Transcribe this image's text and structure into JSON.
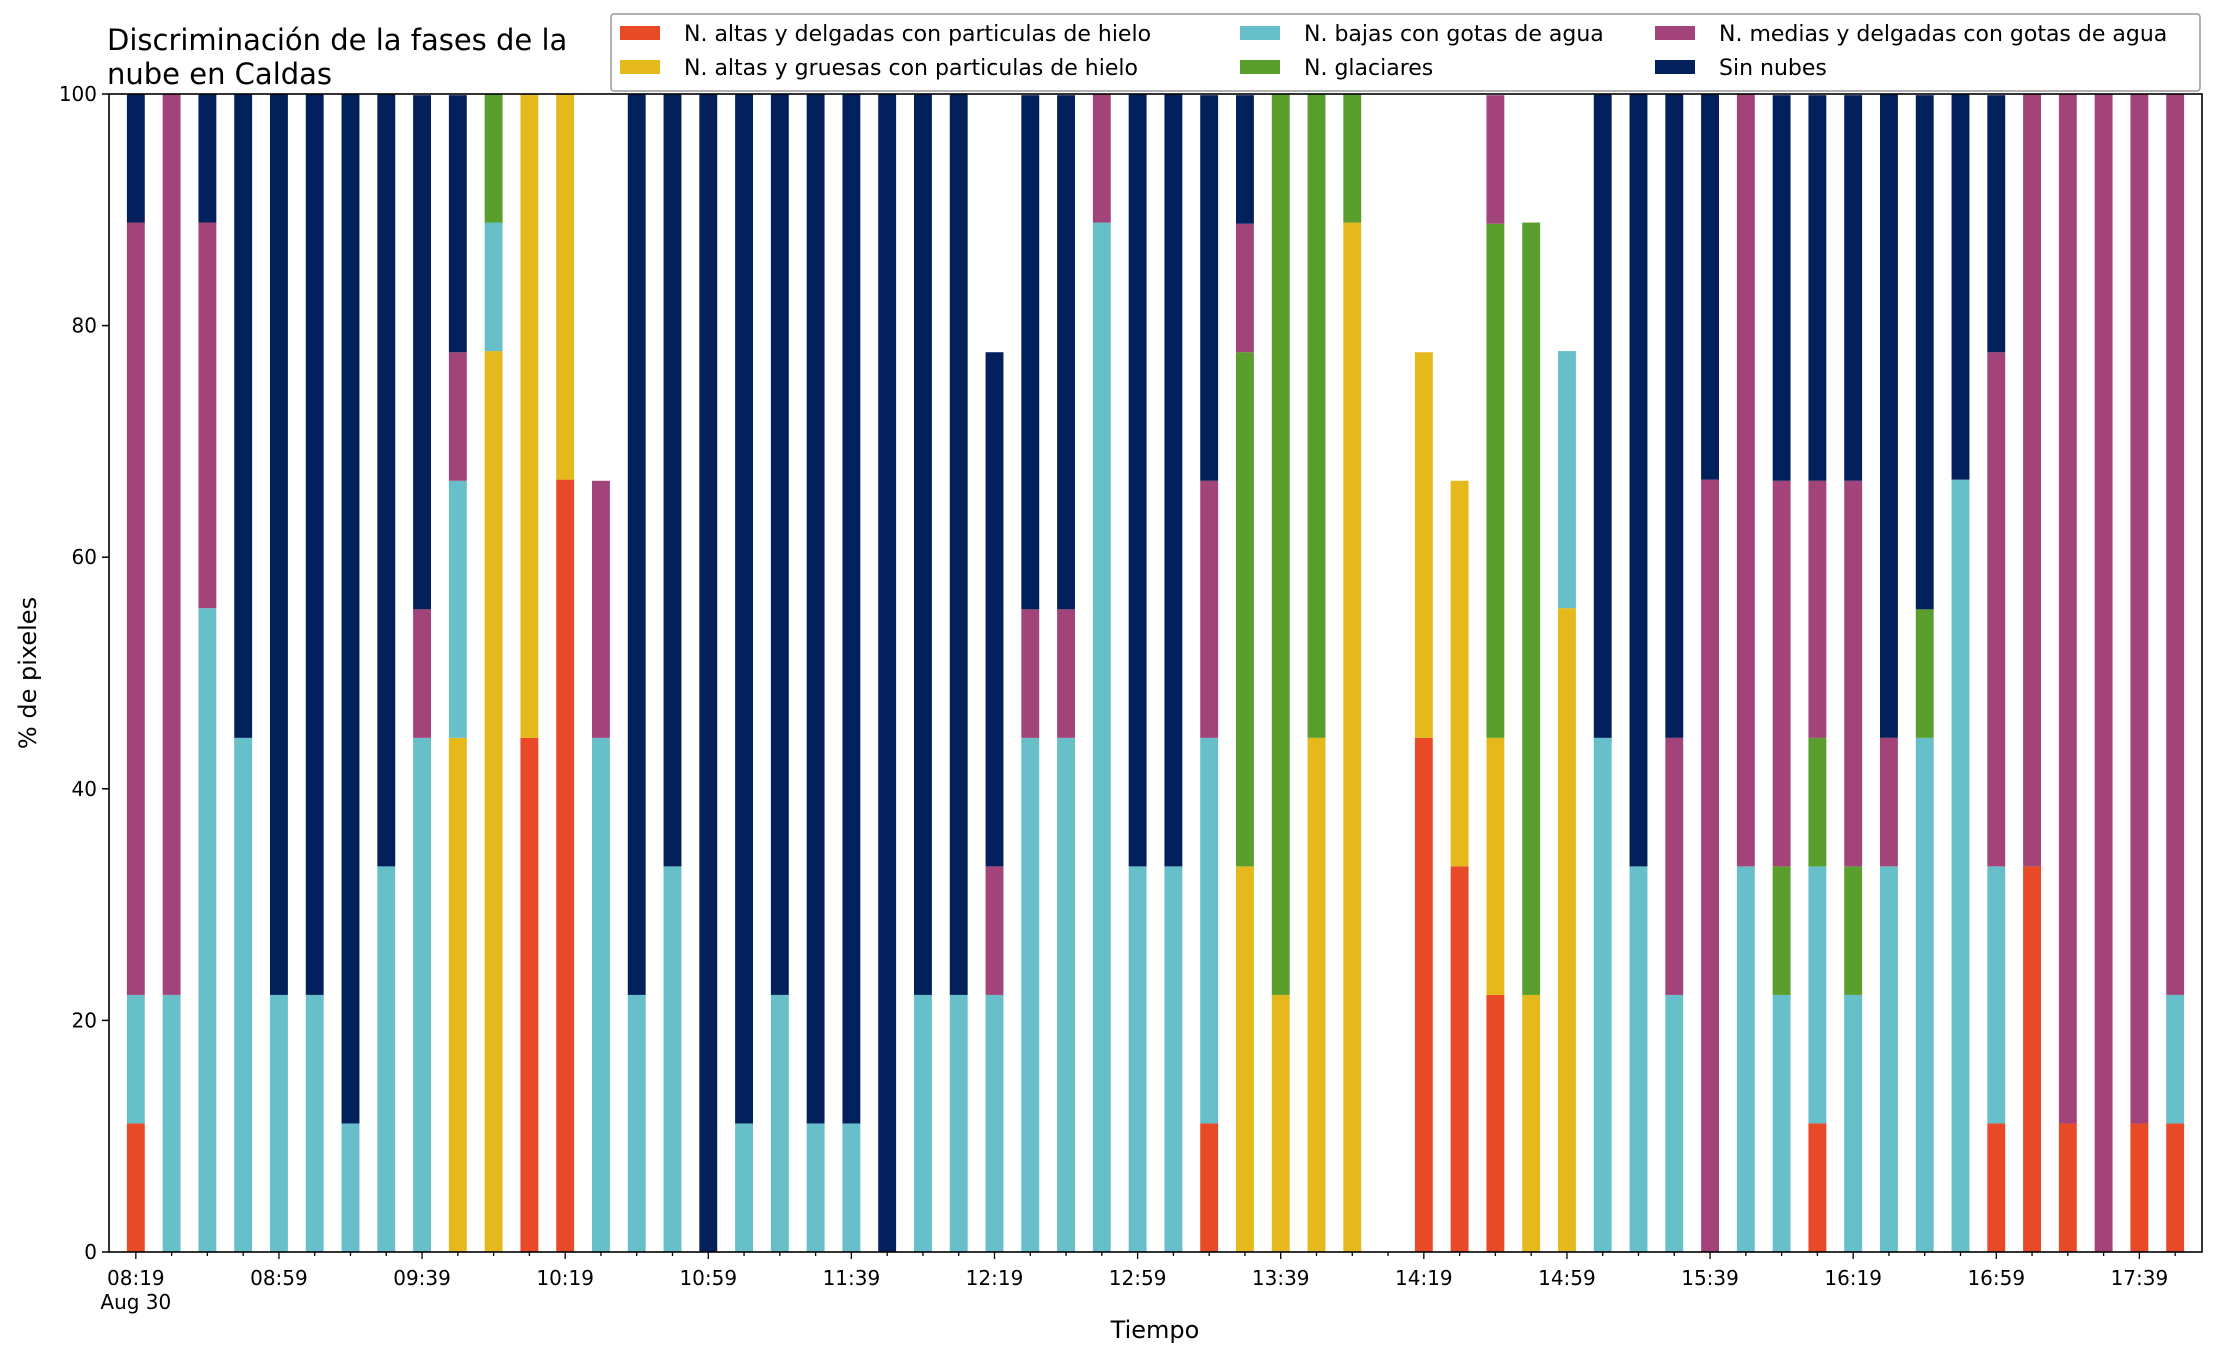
{
  "chart_data": {
    "type": "bar",
    "stacked": true,
    "title": "Discriminación de la fases de la\nnube en Caldas",
    "xlabel": "Tiempo",
    "ylabel": "% de pixeles",
    "ylim": [
      0,
      100
    ],
    "yticks": [
      0,
      20,
      40,
      60,
      80,
      100
    ],
    "grid": false,
    "legend": {
      "placement": "top-right",
      "columns": 3
    },
    "x_tick_labels": [
      {
        "index": 0,
        "label": "08:19",
        "sublabel": "Aug 30"
      },
      {
        "index": 4,
        "label": "08:59"
      },
      {
        "index": 8,
        "label": "09:39"
      },
      {
        "index": 12,
        "label": "10:19"
      },
      {
        "index": 16,
        "label": "10:59"
      },
      {
        "index": 20,
        "label": "11:39"
      },
      {
        "index": 24,
        "label": "12:19"
      },
      {
        "index": 28,
        "label": "12:59"
      },
      {
        "index": 32,
        "label": "13:39"
      },
      {
        "index": 36,
        "label": "14:19"
      },
      {
        "index": 40,
        "label": "14:59"
      },
      {
        "index": 44,
        "label": "15:39"
      },
      {
        "index": 48,
        "label": "16:19"
      },
      {
        "index": 52,
        "label": "16:59"
      },
      {
        "index": 56,
        "label": "17:39"
      }
    ],
    "categories": [
      "08:19",
      "08:29",
      "08:39",
      "08:49",
      "08:59",
      "09:09",
      "09:19",
      "09:29",
      "09:39",
      "09:49",
      "09:59",
      "10:09",
      "10:19",
      "10:29",
      "10:39",
      "10:49",
      "10:59",
      "11:09",
      "11:19",
      "11:29",
      "11:39",
      "11:49",
      "11:59",
      "12:09",
      "12:19",
      "12:29",
      "12:39",
      "12:49",
      "12:59",
      "13:09",
      "13:19",
      "13:29",
      "13:39",
      "13:49",
      "13:59",
      "14:09",
      "14:19",
      "14:29",
      "14:39",
      "14:49",
      "14:59",
      "15:09",
      "15:19",
      "15:29",
      "15:39",
      "15:49",
      "15:59",
      "16:09",
      "16:19",
      "16:29",
      "16:39",
      "16:49",
      "16:59",
      "17:09",
      "17:19",
      "17:29",
      "17:39",
      "17:49"
    ],
    "series": [
      {
        "name": "N. altas y delgadas con particulas de hielo",
        "color": "#e84a27",
        "values": [
          11.1,
          0,
          0,
          0,
          0,
          0,
          0,
          0,
          0,
          0,
          0,
          44.4,
          66.7,
          0,
          0,
          0,
          0,
          0,
          0,
          0,
          0,
          0,
          0,
          0,
          0,
          0,
          0,
          0,
          0,
          0,
          11.1,
          0,
          0,
          0,
          0,
          0,
          44.4,
          33.3,
          22.2,
          0,
          0,
          0,
          0,
          0,
          0,
          0,
          0,
          11.1,
          0,
          0,
          0,
          0,
          11.1,
          33.3,
          11.1,
          0,
          11.1,
          11.1
        ]
      },
      {
        "name": "N. altas y gruesas con particulas de hielo",
        "color": "#e5b81c",
        "values": [
          0,
          0,
          0,
          0,
          0,
          0,
          0,
          0,
          0,
          44.4,
          77.8,
          55.6,
          33.3,
          0,
          0,
          0,
          0,
          0,
          0,
          0,
          0,
          0,
          0,
          0,
          0,
          0,
          0,
          0,
          0,
          0,
          0,
          33.3,
          22.2,
          44.4,
          88.9,
          0,
          33.3,
          33.3,
          22.2,
          22.2,
          55.6,
          0,
          0,
          0,
          0,
          0,
          0,
          0,
          0,
          0,
          0,
          0,
          0,
          0,
          0,
          0,
          0,
          0
        ]
      },
      {
        "name": "N. bajas con gotas de agua",
        "color": "#66bfc9",
        "values": [
          11.1,
          22.2,
          55.6,
          44.4,
          22.2,
          22.2,
          11.1,
          33.3,
          44.4,
          22.2,
          11.1,
          0,
          0,
          44.4,
          22.2,
          33.3,
          0,
          11.1,
          22.2,
          11.1,
          11.1,
          0,
          22.2,
          22.2,
          22.2,
          44.4,
          44.4,
          88.9,
          33.3,
          33.3,
          33.3,
          0,
          0,
          0,
          0,
          0,
          0,
          0,
          0,
          0,
          22.2,
          44.4,
          33.3,
          22.2,
          0,
          33.3,
          22.2,
          22.2,
          22.2,
          33.3,
          44.4,
          66.7,
          22.2,
          0,
          0,
          0,
          0,
          11.1
        ]
      },
      {
        "name": "N. glaciares",
        "color": "#5a9e2d",
        "values": [
          0,
          0,
          0,
          0,
          0,
          0,
          0,
          0,
          0,
          0,
          11.1,
          0,
          0,
          0,
          0,
          0,
          0,
          0,
          0,
          0,
          0,
          0,
          0,
          0,
          0,
          0,
          0,
          0,
          0,
          0,
          0,
          44.4,
          77.8,
          55.6,
          11.1,
          0,
          0,
          0,
          44.4,
          66.7,
          0,
          0,
          0,
          0,
          0,
          0,
          11.1,
          11.1,
          11.1,
          0,
          11.1,
          0,
          0,
          0,
          0,
          0,
          0,
          0
        ]
      },
      {
        "name": "N. medias y delgadas con gotas de agua",
        "color": "#a2447a",
        "values": [
          66.7,
          77.8,
          33.3,
          0,
          0,
          0,
          0,
          0,
          11.1,
          11.1,
          0,
          0,
          0,
          22.2,
          0,
          0,
          0,
          0,
          0,
          0,
          0,
          0,
          0,
          0,
          11.1,
          11.1,
          11.1,
          11.1,
          0,
          0,
          22.2,
          11.1,
          0,
          0,
          0,
          0,
          0,
          0,
          11.1,
          0,
          0,
          0,
          0,
          22.2,
          66.7,
          66.7,
          33.3,
          22.2,
          33.3,
          11.1,
          0,
          0,
          44.4,
          66.7,
          88.9,
          100,
          88.9,
          77.8
        ]
      },
      {
        "name": "Sin nubes",
        "color": "#02205c",
        "values": [
          11.1,
          0,
          11.1,
          55.6,
          77.8,
          77.8,
          88.9,
          66.7,
          44.4,
          22.2,
          0,
          0,
          0,
          0,
          77.8,
          66.7,
          100,
          88.9,
          77.8,
          88.9,
          88.9,
          100,
          77.8,
          77.8,
          44.4,
          44.4,
          44.4,
          0,
          66.7,
          66.7,
          33.3,
          11.1,
          0,
          0,
          0,
          0,
          0,
          0,
          0,
          0,
          0,
          55.6,
          66.7,
          55.6,
          33.3,
          0,
          33.3,
          33.3,
          33.3,
          55.6,
          44.4,
          33.3,
          22.2,
          0,
          0,
          0,
          0,
          0
        ]
      }
    ]
  }
}
